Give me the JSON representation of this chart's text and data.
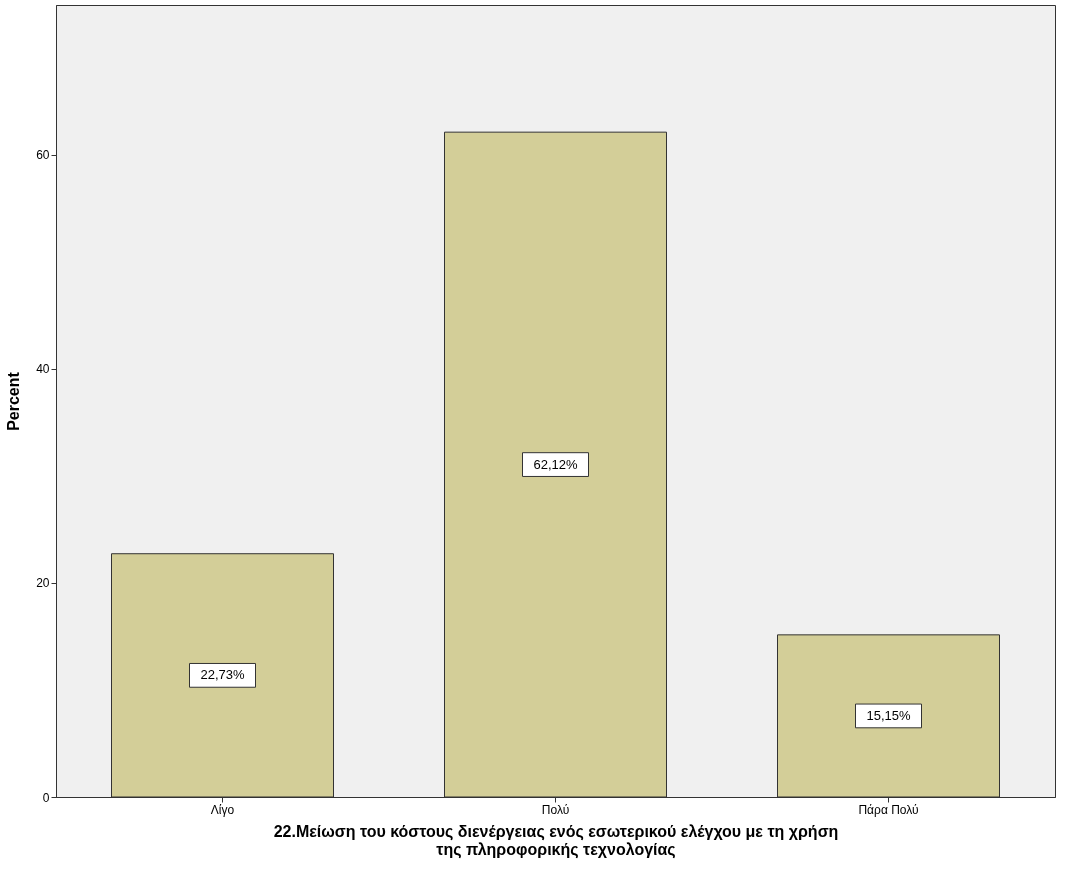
{
  "chart_data": {
    "type": "bar",
    "categories": [
      "Λίγο",
      "Πολύ",
      "Πάρα Πολύ"
    ],
    "values": [
      22.73,
      62.12,
      15.15
    ],
    "value_labels": [
      "22,73%",
      "62,12%",
      "15,15%"
    ],
    "color": "#d3ce98",
    "xlabel": "22.Μείωση του κόστους διενέργειας ενός εσωτερικού ελέγχου με τη χρήση της πληροφορικής τεχνολογίας",
    "ylabel": "Percent",
    "ylim": [
      0,
      74
    ],
    "yticks": [
      0,
      20,
      40,
      60
    ],
    "grid": false
  }
}
